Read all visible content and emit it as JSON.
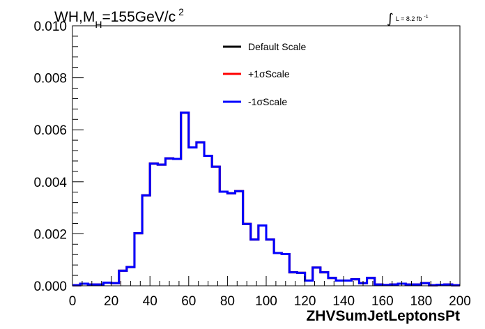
{
  "chart_data": {
    "type": "line",
    "style": "step-histogram",
    "title": {
      "prefix": "WH,M",
      "subscript": "H",
      "suffix": "=155GeV/c",
      "superscript": "2"
    },
    "lumi": {
      "integral_sign": "∫",
      "text": "L = 8.2 fb",
      "superscript": "-1"
    },
    "xlabel": "ZHVSumJetLeptonsPt",
    "ylabel": "",
    "xlim": [
      0,
      200
    ],
    "ylim": [
      0,
      0.01
    ],
    "x_ticks": [
      "0",
      "20",
      "40",
      "60",
      "80",
      "100",
      "120",
      "140",
      "160",
      "180",
      "200"
    ],
    "y_ticks": [
      "0.000",
      "0.002",
      "0.004",
      "0.006",
      "0.008",
      "0.010"
    ],
    "bin_width": 4,
    "bin_start": 0,
    "legend_position": "top-center",
    "series": [
      {
        "name": "Default Scale",
        "color": "#000000",
        "values": [
          2e-05,
          8e-05,
          5e-05,
          5e-05,
          0.00012,
          0.0001,
          0.00058,
          0.00072,
          0.00202,
          0.00348,
          0.0047,
          0.00466,
          0.0049,
          0.00488,
          0.00666,
          0.00532,
          0.00552,
          0.005,
          0.00458,
          0.00362,
          0.00356,
          0.00364,
          0.00238,
          0.00178,
          0.00232,
          0.00178,
          0.00126,
          0.00122,
          0.00052,
          0.0005,
          0.0002,
          0.0007,
          0.00052,
          0.0003,
          0.0002,
          0.0002,
          0.00025,
          0.0001,
          0.0003,
          5e-05,
          3e-05,
          5e-05,
          8e-05,
          5e-05,
          5e-05,
          0.0001,
          2e-05,
          4e-05,
          5e-05,
          2e-05
        ]
      },
      {
        "name": "+1σScale",
        "color": "#ff0000",
        "values": [
          2e-05,
          8e-05,
          5e-05,
          5e-05,
          0.00012,
          0.0001,
          0.00058,
          0.00072,
          0.00202,
          0.00348,
          0.0047,
          0.00466,
          0.0049,
          0.00488,
          0.00666,
          0.00532,
          0.00552,
          0.005,
          0.00458,
          0.00362,
          0.00356,
          0.00364,
          0.00238,
          0.00178,
          0.00232,
          0.00178,
          0.00126,
          0.00122,
          0.00052,
          0.0005,
          0.0002,
          0.0007,
          0.00052,
          0.0003,
          0.0002,
          0.0002,
          0.00025,
          0.0001,
          0.0003,
          5e-05,
          3e-05,
          5e-05,
          8e-05,
          5e-05,
          5e-05,
          0.0001,
          2e-05,
          4e-05,
          5e-05,
          2e-05
        ]
      },
      {
        "name": "-1σScale",
        "color": "#0000ff",
        "values": [
          2e-05,
          8e-05,
          5e-05,
          5e-05,
          0.00012,
          0.0001,
          0.00058,
          0.00072,
          0.00202,
          0.00348,
          0.0047,
          0.00466,
          0.0049,
          0.00488,
          0.00666,
          0.00532,
          0.00552,
          0.005,
          0.00458,
          0.00362,
          0.00356,
          0.00364,
          0.00238,
          0.00178,
          0.00232,
          0.00178,
          0.00126,
          0.00122,
          0.00052,
          0.0005,
          0.0002,
          0.0007,
          0.00052,
          0.0003,
          0.0002,
          0.0002,
          0.00025,
          0.0001,
          0.0003,
          5e-05,
          3e-05,
          5e-05,
          8e-05,
          5e-05,
          5e-05,
          0.0001,
          2e-05,
          4e-05,
          5e-05,
          2e-05
        ]
      }
    ]
  }
}
